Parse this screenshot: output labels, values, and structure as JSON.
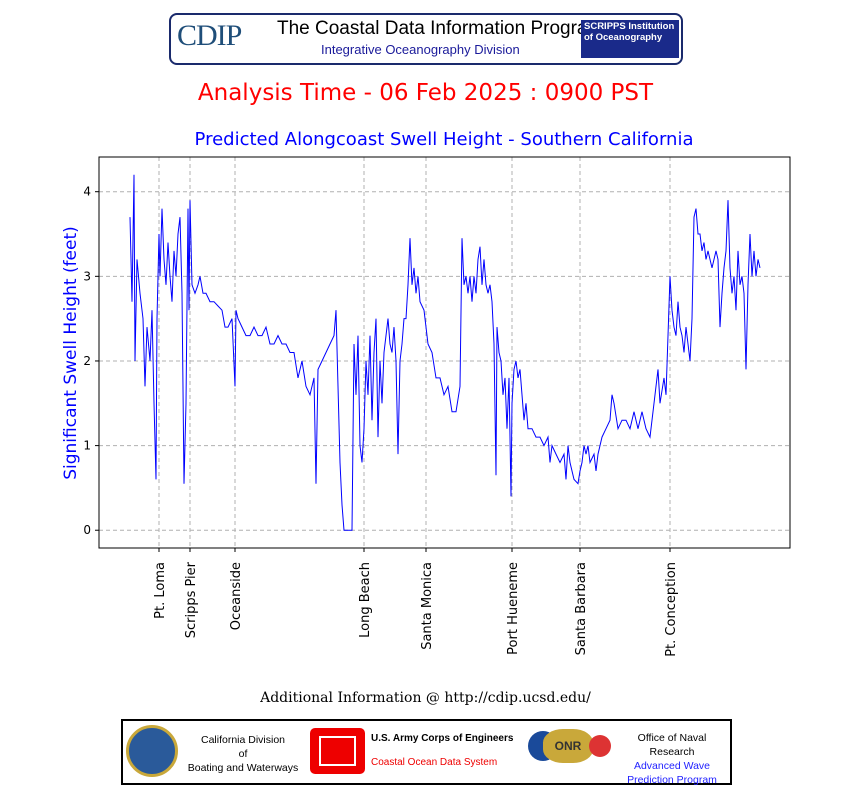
{
  "header": {
    "logo_text": "CDIP",
    "title": "The Coastal Data Information Program",
    "subtitle": "Integrative Oceanography Division",
    "partner": "SCRIPPS Institution of Oceanography"
  },
  "analysis_time": "Analysis Time -  06 Feb 2025 : 0900 PST",
  "chart_data": {
    "type": "line",
    "title": "Predicted Alongcoast Swell Height - Southern California",
    "xlabel": "",
    "ylabel": "Significant Swell Height (feet)",
    "xlim": [
      -1,
      690
    ],
    "ylim": [
      -0.21,
      4.41
    ],
    "yticks": [
      0,
      1,
      2,
      3,
      4
    ],
    "grid": true,
    "series_color": "#0000ff",
    "locations": [
      {
        "name": "Pt. Loma",
        "x": 59
      },
      {
        "name": "Scripps Pier",
        "x": 90
      },
      {
        "name": "Oceanside",
        "x": 135
      },
      {
        "name": "Long Beach",
        "x": 264
      },
      {
        "name": "Santa Monica",
        "x": 326
      },
      {
        "name": "Port Hueneme",
        "x": 412
      },
      {
        "name": "Santa Barbara",
        "x": 480
      },
      {
        "name": "Pt. Conception",
        "x": 570
      }
    ],
    "points": [
      [
        30,
        3.7
      ],
      [
        32,
        2.7
      ],
      [
        34,
        4.2
      ],
      [
        35,
        2.0
      ],
      [
        37,
        3.2
      ],
      [
        40,
        2.8
      ],
      [
        43,
        2.5
      ],
      [
        45,
        1.7
      ],
      [
        47,
        2.4
      ],
      [
        50,
        2.0
      ],
      [
        52,
        2.6
      ],
      [
        54,
        1.5
      ],
      [
        56,
        0.6
      ],
      [
        57,
        2.5
      ],
      [
        59,
        3.5
      ],
      [
        60,
        3.0
      ],
      [
        62,
        3.8
      ],
      [
        64,
        3.2
      ],
      [
        66,
        2.9
      ],
      [
        68,
        3.4
      ],
      [
        70,
        3.0
      ],
      [
        72,
        2.7
      ],
      [
        74,
        3.3
      ],
      [
        76,
        3.0
      ],
      [
        78,
        3.5
      ],
      [
        80,
        3.7
      ],
      [
        82,
        2.8
      ],
      [
        84,
        0.55
      ],
      [
        86,
        1.5
      ],
      [
        88,
        3.8
      ],
      [
        89,
        2.6
      ],
      [
        90,
        3.9
      ],
      [
        92,
        2.9
      ],
      [
        95,
        2.8
      ],
      [
        98,
        2.9
      ],
      [
        100,
        3.0
      ],
      [
        103,
        2.8
      ],
      [
        106,
        2.8
      ],
      [
        110,
        2.7
      ],
      [
        114,
        2.7
      ],
      [
        118,
        2.65
      ],
      [
        122,
        2.6
      ],
      [
        125,
        2.4
      ],
      [
        128,
        2.4
      ],
      [
        132,
        2.5
      ],
      [
        135,
        1.7
      ],
      [
        136,
        2.6
      ],
      [
        138,
        2.5
      ],
      [
        142,
        2.4
      ],
      [
        146,
        2.3
      ],
      [
        150,
        2.3
      ],
      [
        154,
        2.4
      ],
      [
        158,
        2.3
      ],
      [
        162,
        2.3
      ],
      [
        166,
        2.4
      ],
      [
        170,
        2.2
      ],
      [
        174,
        2.2
      ],
      [
        178,
        2.3
      ],
      [
        182,
        2.2
      ],
      [
        186,
        2.2
      ],
      [
        190,
        2.1
      ],
      [
        194,
        2.1
      ],
      [
        198,
        1.8
      ],
      [
        202,
        2.0
      ],
      [
        206,
        1.7
      ],
      [
        210,
        1.6
      ],
      [
        214,
        1.8
      ],
      [
        216,
        0.55
      ],
      [
        218,
        1.9
      ],
      [
        222,
        2.0
      ],
      [
        226,
        2.1
      ],
      [
        230,
        2.2
      ],
      [
        234,
        2.3
      ],
      [
        236,
        2.6
      ],
      [
        238,
        1.7
      ],
      [
        240,
        0.8
      ],
      [
        242,
        0.3
      ],
      [
        244,
        0
      ],
      [
        248,
        0
      ],
      [
        250,
        0
      ],
      [
        252,
        0
      ],
      [
        254,
        2.2
      ],
      [
        256,
        1.6
      ],
      [
        258,
        2.3
      ],
      [
        260,
        1.0
      ],
      [
        262,
        0.8
      ],
      [
        264,
        1.2
      ],
      [
        266,
        2.0
      ],
      [
        268,
        1.6
      ],
      [
        270,
        2.3
      ],
      [
        272,
        1.3
      ],
      [
        274,
        2.1
      ],
      [
        276,
        2.5
      ],
      [
        278,
        1.1
      ],
      [
        280,
        2.0
      ],
      [
        282,
        1.5
      ],
      [
        284,
        2.1
      ],
      [
        286,
        2.3
      ],
      [
        288,
        2.5
      ],
      [
        290,
        2.2
      ],
      [
        292,
        2.1
      ],
      [
        294,
        2.4
      ],
      [
        296,
        2.0
      ],
      [
        298,
        0.9
      ],
      [
        300,
        2.0
      ],
      [
        302,
        2.2
      ],
      [
        304,
        2.5
      ],
      [
        306,
        2.5
      ],
      [
        308,
        2.9
      ],
      [
        310,
        3.45
      ],
      [
        312,
        2.9
      ],
      [
        314,
        3.1
      ],
      [
        316,
        2.8
      ],
      [
        318,
        3.0
      ],
      [
        320,
        2.7
      ],
      [
        324,
        2.6
      ],
      [
        328,
        2.2
      ],
      [
        332,
        2.1
      ],
      [
        336,
        1.8
      ],
      [
        340,
        1.8
      ],
      [
        344,
        1.6
      ],
      [
        348,
        1.7
      ],
      [
        352,
        1.4
      ],
      [
        356,
        1.4
      ],
      [
        360,
        1.7
      ],
      [
        362,
        3.45
      ],
      [
        364,
        2.9
      ],
      [
        366,
        3.0
      ],
      [
        368,
        2.8
      ],
      [
        370,
        3.0
      ],
      [
        372,
        2.7
      ],
      [
        374,
        3.0
      ],
      [
        376,
        2.8
      ],
      [
        378,
        3.2
      ],
      [
        380,
        3.35
      ],
      [
        382,
        2.9
      ],
      [
        384,
        3.2
      ],
      [
        386,
        2.9
      ],
      [
        388,
        2.8
      ],
      [
        390,
        2.9
      ],
      [
        392,
        2.7
      ],
      [
        394,
        2.2
      ],
      [
        396,
        0.65
      ],
      [
        397,
        2.4
      ],
      [
        399,
        2.1
      ],
      [
        401,
        2.0
      ],
      [
        403,
        1.6
      ],
      [
        405,
        1.8
      ],
      [
        407,
        1.2
      ],
      [
        409,
        1.8
      ],
      [
        411,
        0.4
      ],
      [
        412,
        1.5
      ],
      [
        414,
        1.9
      ],
      [
        416,
        2.0
      ],
      [
        418,
        1.8
      ],
      [
        420,
        1.9
      ],
      [
        422,
        1.6
      ],
      [
        424,
        1.3
      ],
      [
        426,
        1.5
      ],
      [
        428,
        1.2
      ],
      [
        432,
        1.2
      ],
      [
        436,
        1.1
      ],
      [
        440,
        1.1
      ],
      [
        444,
        1.0
      ],
      [
        448,
        1.1
      ],
      [
        450,
        0.8
      ],
      [
        452,
        1.0
      ],
      [
        456,
        0.9
      ],
      [
        460,
        0.8
      ],
      [
        464,
        0.9
      ],
      [
        466,
        0.6
      ],
      [
        468,
        1.0
      ],
      [
        470,
        0.8
      ],
      [
        474,
        0.6
      ],
      [
        478,
        0.55
      ],
      [
        480,
        0.7
      ],
      [
        482,
        0.8
      ],
      [
        484,
        1.0
      ],
      [
        486,
        0.9
      ],
      [
        488,
        1.0
      ],
      [
        490,
        0.8
      ],
      [
        494,
        0.9
      ],
      [
        496,
        0.7
      ],
      [
        498,
        0.9
      ],
      [
        502,
        1.1
      ],
      [
        506,
        1.2
      ],
      [
        510,
        1.3
      ],
      [
        512,
        1.6
      ],
      [
        514,
        1.5
      ],
      [
        518,
        1.2
      ],
      [
        522,
        1.3
      ],
      [
        526,
        1.3
      ],
      [
        530,
        1.2
      ],
      [
        534,
        1.4
      ],
      [
        538,
        1.2
      ],
      [
        542,
        1.4
      ],
      [
        546,
        1.2
      ],
      [
        550,
        1.1
      ],
      [
        554,
        1.5
      ],
      [
        558,
        1.9
      ],
      [
        560,
        1.5
      ],
      [
        564,
        1.8
      ],
      [
        566,
        1.6
      ],
      [
        568,
        2.3
      ],
      [
        570,
        3.0
      ],
      [
        572,
        2.6
      ],
      [
        574,
        2.4
      ],
      [
        576,
        2.3
      ],
      [
        578,
        2.7
      ],
      [
        580,
        2.4
      ],
      [
        582,
        2.3
      ],
      [
        584,
        2.1
      ],
      [
        586,
        2.4
      ],
      [
        588,
        2.2
      ],
      [
        590,
        2.0
      ],
      [
        592,
        2.5
      ],
      [
        594,
        3.7
      ],
      [
        596,
        3.8
      ],
      [
        598,
        3.5
      ],
      [
        600,
        3.5
      ],
      [
        602,
        3.3
      ],
      [
        604,
        3.4
      ],
      [
        606,
        3.2
      ],
      [
        608,
        3.3
      ],
      [
        612,
        3.1
      ],
      [
        616,
        3.3
      ],
      [
        618,
        3.2
      ],
      [
        620,
        2.4
      ],
      [
        622,
        2.8
      ],
      [
        624,
        3.1
      ],
      [
        626,
        3.3
      ],
      [
        628,
        3.9
      ],
      [
        630,
        3.1
      ],
      [
        632,
        2.8
      ],
      [
        634,
        3.0
      ],
      [
        636,
        2.6
      ],
      [
        638,
        3.3
      ],
      [
        640,
        2.9
      ],
      [
        642,
        3.0
      ],
      [
        644,
        2.8
      ],
      [
        646,
        1.9
      ],
      [
        648,
        2.9
      ],
      [
        650,
        3.5
      ],
      [
        652,
        3.0
      ],
      [
        654,
        3.3
      ],
      [
        656,
        3.0
      ],
      [
        658,
        3.2
      ],
      [
        660,
        3.1
      ]
    ]
  },
  "additional_info": "Additional Information @ http://cdip.ucsd.edu/",
  "footer": {
    "cdbw": {
      "line1": "California Division",
      "line2": "of",
      "line3": "Boating and Waterways"
    },
    "usace": {
      "line1": "U.S. Army Corps of Engineers",
      "line2": "Coastal Ocean Data System"
    },
    "onr": {
      "line1": "Office of Naval Research",
      "line2": "Advanced Wave",
      "line3": "Prediction Program",
      "seal_text": "ONR"
    }
  }
}
